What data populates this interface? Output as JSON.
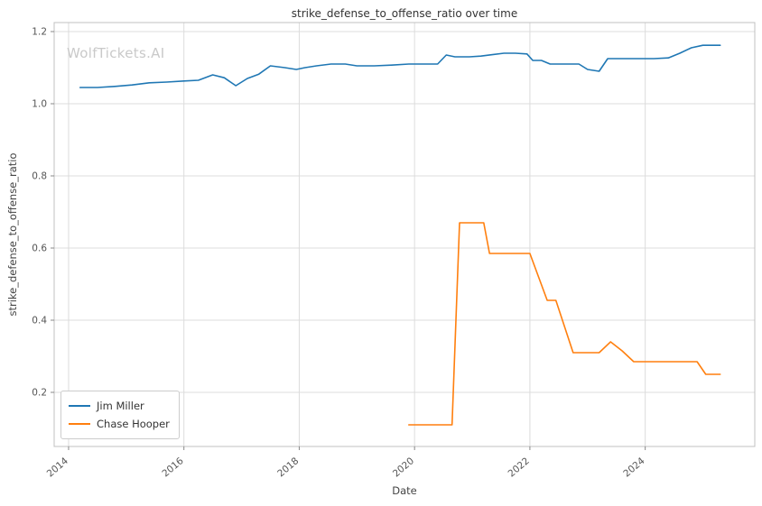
{
  "watermark": "WolfTickets.AI",
  "chart_data": {
    "type": "line",
    "title": "strike_defense_to_offense_ratio over time",
    "xlabel": "Date",
    "ylabel": "strike_defense_to_offense_ratio",
    "x_ticks": [
      2014,
      2016,
      2018,
      2020,
      2022,
      2024
    ],
    "y_ticks": [
      0.2,
      0.4,
      0.6,
      0.8,
      1.0,
      1.2
    ],
    "xlim": [
      2013.75,
      2025.9
    ],
    "ylim": [
      0.05,
      1.225
    ],
    "grid": true,
    "legend_position": "lower left",
    "series": [
      {
        "name": "Jim Miller",
        "color": "#1f77b4",
        "x": [
          2014.2,
          2014.5,
          2014.8,
          2015.1,
          2015.4,
          2015.7,
          2016.0,
          2016.25,
          2016.5,
          2016.7,
          2016.9,
          2017.1,
          2017.3,
          2017.5,
          2017.75,
          2017.95,
          2018.1,
          2018.3,
          2018.55,
          2018.8,
          2019.0,
          2019.3,
          2019.6,
          2019.9,
          2020.15,
          2020.4,
          2020.55,
          2020.7,
          2020.95,
          2021.15,
          2021.35,
          2021.55,
          2021.75,
          2021.95,
          2022.05,
          2022.2,
          2022.35,
          2022.6,
          2022.85,
          2023.0,
          2023.2,
          2023.35,
          2023.6,
          2023.9,
          2024.15,
          2024.4,
          2024.6,
          2024.8,
          2025.0,
          2025.3
        ],
        "y": [
          1.045,
          1.045,
          1.048,
          1.052,
          1.058,
          1.06,
          1.063,
          1.065,
          1.08,
          1.072,
          1.05,
          1.07,
          1.082,
          1.105,
          1.1,
          1.095,
          1.1,
          1.105,
          1.11,
          1.11,
          1.105,
          1.105,
          1.107,
          1.11,
          1.11,
          1.11,
          1.135,
          1.13,
          1.13,
          1.132,
          1.136,
          1.14,
          1.14,
          1.138,
          1.12,
          1.12,
          1.11,
          1.11,
          1.11,
          1.095,
          1.09,
          1.125,
          1.125,
          1.125,
          1.125,
          1.127,
          1.14,
          1.155,
          1.162,
          1.162
        ]
      },
      {
        "name": "Chase Hooper",
        "color": "#ff7f0e",
        "x": [
          2019.9,
          2020.2,
          2020.5,
          2020.65,
          2020.78,
          2021.0,
          2021.2,
          2021.3,
          2021.55,
          2021.8,
          2022.0,
          2022.3,
          2022.45,
          2022.75,
          2023.0,
          2023.2,
          2023.4,
          2023.6,
          2023.8,
          2024.1,
          2024.4,
          2024.7,
          2024.9,
          2025.05,
          2025.3
        ],
        "y": [
          0.11,
          0.11,
          0.11,
          0.11,
          0.67,
          0.67,
          0.67,
          0.585,
          0.585,
          0.585,
          0.585,
          0.455,
          0.455,
          0.31,
          0.31,
          0.31,
          0.34,
          0.315,
          0.285,
          0.285,
          0.285,
          0.285,
          0.285,
          0.25,
          0.25
        ]
      }
    ]
  }
}
